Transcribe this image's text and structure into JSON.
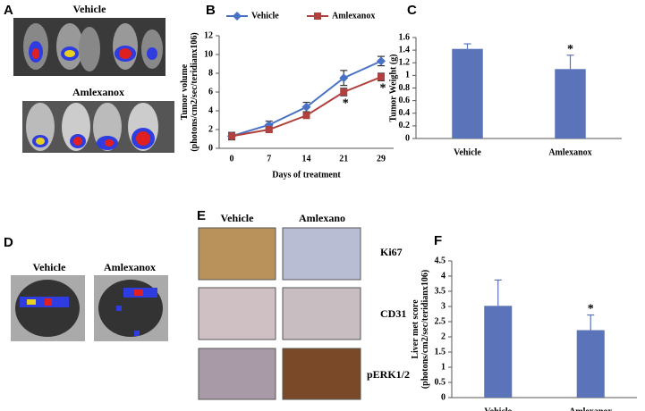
{
  "panels": {
    "A": {
      "label": "A",
      "groups": [
        "Vehicle",
        "Amlexanox"
      ]
    },
    "D": {
      "label": "D",
      "groups": [
        "Vehicle",
        "Amlexanox"
      ]
    },
    "E": {
      "label": "E",
      "columns": [
        "Vehicle",
        "Amlexano"
      ],
      "rows": [
        "Ki67",
        "CD31",
        "pERK1/2"
      ]
    }
  },
  "chart_data": [
    {
      "type": "line",
      "panel": "B",
      "legend": "top",
      "y_label": [
        "Tumor volume",
        "(photons/cm2/sec/teridianx106)"
      ],
      "x_label": "Days of treatment",
      "categories": [
        "0",
        "7",
        "14",
        "21",
        "29"
      ],
      "series": [
        {
          "name": "Vehicle",
          "color": "#4a72c4",
          "marker": "diamond",
          "values": [
            1.3,
            2.5,
            4.4,
            7.5,
            9.3
          ],
          "errors": [
            0.4,
            0.4,
            0.5,
            0.8,
            0.5
          ]
        },
        {
          "name": "Amlexanox",
          "color": "#b0413e",
          "marker": "square",
          "values": [
            1.3,
            2.0,
            3.5,
            6.0,
            7.6
          ],
          "errors": [
            0.3,
            0.2,
            0.2,
            0.4,
            0.4
          ],
          "significance": [
            null,
            null,
            null,
            "*",
            "*"
          ]
        }
      ],
      "ylim": [
        0,
        12
      ],
      "yticks": [
        0,
        2,
        4,
        6,
        8,
        10,
        12
      ]
    },
    {
      "type": "bar",
      "panel": "C",
      "y_label": [
        "Tumor Weight (g)"
      ],
      "categories": [
        "Vehicle",
        "Amlexanox"
      ],
      "values": [
        1.42,
        1.1
      ],
      "errors": [
        0.08,
        0.22
      ],
      "significance": [
        null,
        "*"
      ],
      "color": "#5b73b8",
      "ylim": [
        0,
        1.6
      ],
      "yticks": [
        0,
        0.2,
        0.4,
        0.6,
        0.8,
        1,
        1.2,
        1.4,
        1.6
      ]
    },
    {
      "type": "bar",
      "panel": "F",
      "y_label": [
        "Liver met score",
        "(photons/cm2/sec/teridianx106)"
      ],
      "categories": [
        "Vehicle",
        "Amlexanox"
      ],
      "values": [
        3.02,
        2.22
      ],
      "errors": [
        0.85,
        0.5
      ],
      "significance": [
        null,
        "*"
      ],
      "color": "#5b73b8",
      "ylim": [
        0,
        4.5
      ],
      "yticks": [
        0,
        0.5,
        1,
        1.5,
        2,
        2.5,
        3,
        3.5,
        4,
        4.5
      ]
    }
  ]
}
